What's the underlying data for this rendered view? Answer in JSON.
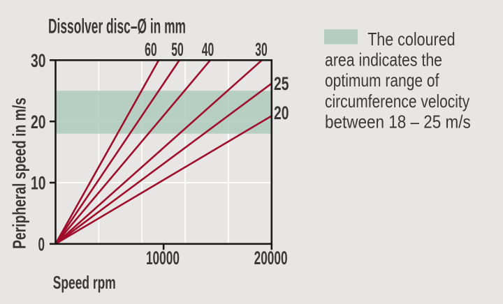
{
  "colors": {
    "background": "#e7e6e4",
    "band_green": "#b7cfc2",
    "band_green_base": "#abc9ba",
    "legend_swatch": "#b4cdc0",
    "line_red": "#a00d2b",
    "axis_black": "#1b1a19",
    "grid_white": "#fbfbfa",
    "label_text": "#3a3938",
    "legend_text": "#3f3e44"
  },
  "chart_data": {
    "type": "line",
    "top_axis_title": "Dissolver disc–Ø in mm",
    "x_axis": {
      "label": "Speed rpm",
      "range": [
        0,
        20000
      ],
      "ticks": [
        {
          "value": 10000,
          "label": "10000"
        },
        {
          "value": 20000,
          "label": "20000"
        }
      ],
      "gridline_values": [
        4000,
        8000,
        12000,
        16000
      ]
    },
    "y_axis": {
      "label": "Peripheral speed in m/s",
      "range": [
        0,
        30
      ],
      "ticks": [
        {
          "value": 0,
          "label": "0"
        },
        {
          "value": 10,
          "label": "10"
        },
        {
          "value": 20,
          "label": "20"
        },
        {
          "value": 30,
          "label": "30"
        }
      ],
      "gridline_values": [
        10,
        20
      ]
    },
    "band": {
      "y_from": 18,
      "y_to": 25,
      "meaning": "optimum range of circumference velocity 18 - 25 m/s"
    },
    "series": [
      {
        "name": "disc-60-mm",
        "disc_mm": 60,
        "label": "60",
        "label_side": "top",
        "points": [
          [
            0,
            0
          ],
          [
            9550,
            30
          ]
        ]
      },
      {
        "name": "disc-50-mm",
        "disc_mm": 50,
        "label": "50",
        "label_side": "top",
        "points": [
          [
            0,
            0
          ],
          [
            11460,
            30
          ]
        ]
      },
      {
        "name": "disc-40-mm",
        "disc_mm": 40,
        "label": "40",
        "label_side": "top",
        "points": [
          [
            0,
            0
          ],
          [
            14320,
            30
          ]
        ]
      },
      {
        "name": "disc-30-mm",
        "disc_mm": 30,
        "label": "30",
        "label_side": "top",
        "points": [
          [
            0,
            0
          ],
          [
            19100,
            30
          ]
        ]
      },
      {
        "name": "disc-25-mm",
        "disc_mm": 25,
        "label": "25",
        "label_side": "right",
        "points": [
          [
            0,
            0
          ],
          [
            20000,
            26.2
          ]
        ]
      },
      {
        "name": "disc-20-mm",
        "disc_mm": 20,
        "label": "20",
        "label_side": "right",
        "points": [
          [
            0,
            0
          ],
          [
            20000,
            20.9
          ]
        ]
      }
    ]
  },
  "legend": {
    "text": "The coloured area indicates the optimum range of circumference velocity between 18 – 25 m/s",
    "lines": [
      "The coloured",
      "area indicates the",
      "optimum range of",
      "circumference velocity",
      "between 18 – 25 m/s"
    ]
  }
}
